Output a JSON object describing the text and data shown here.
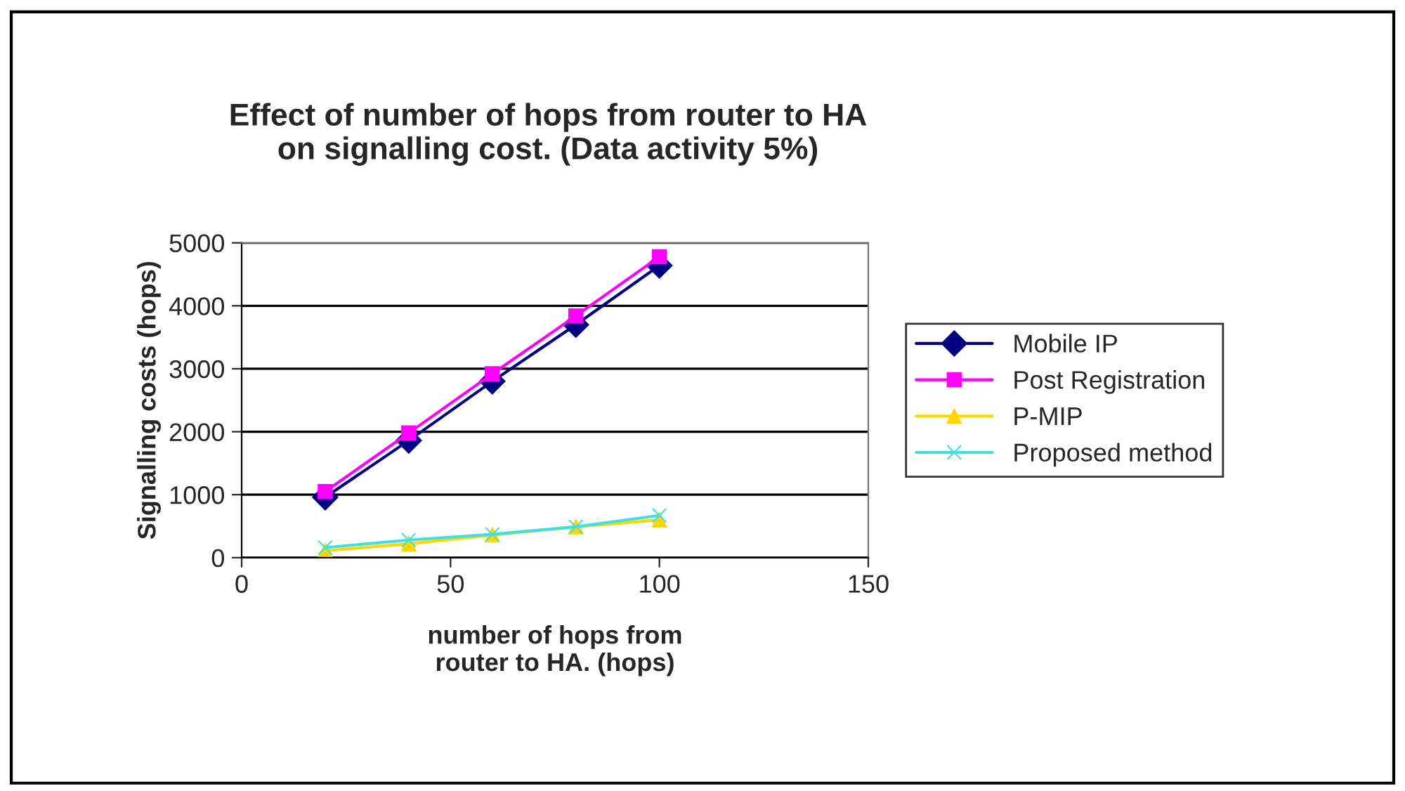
{
  "chart_data": {
    "type": "line",
    "title": "Effect of number of hops from router to HA\non signalling cost. (Data activity 5%)",
    "xlabel": "number of hops from\nrouter to HA. (hops)",
    "ylabel": "Signalling costs (hops)",
    "x": [
      20,
      40,
      60,
      80,
      100
    ],
    "series": [
      {
        "name": "Mobile IP",
        "color": "#000080",
        "marker": "diamond",
        "values": [
          960,
          1860,
          2800,
          3700,
          4640
        ]
      },
      {
        "name": "Post Registration",
        "color": "#ff00ff",
        "marker": "square",
        "values": [
          1050,
          1980,
          2920,
          3840,
          4780
        ]
      },
      {
        "name": "P-MIP",
        "color": "#ffd700",
        "marker": "triangle",
        "values": [
          110,
          220,
          360,
          490,
          600
        ]
      },
      {
        "name": "Proposed method",
        "color": "#40e0e0",
        "marker": "cross",
        "values": [
          160,
          280,
          370,
          490,
          670
        ]
      }
    ],
    "xlim": [
      0,
      150
    ],
    "xticks": [
      0,
      50,
      100,
      150
    ],
    "ylim": [
      0,
      5000
    ],
    "yticks": [
      0,
      1000,
      2000,
      3000,
      4000,
      5000
    ],
    "grid": "y",
    "legend": "right",
    "line_style": "solid"
  }
}
